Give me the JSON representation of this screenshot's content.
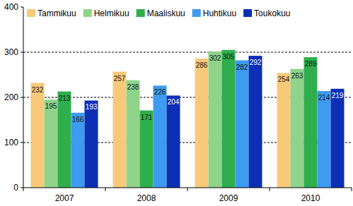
{
  "chart_data": {
    "type": "bar",
    "categories": [
      "2007",
      "2008",
      "2009",
      "2010"
    ],
    "series": [
      {
        "name": "Tammikuu",
        "color": "#f9c97a",
        "values": [
          232,
          257,
          286,
          254
        ]
      },
      {
        "name": "Helmikuu",
        "color": "#8fd48a",
        "values": [
          195,
          238,
          302,
          263
        ]
      },
      {
        "name": "Maaliskuu",
        "color": "#2fae4e",
        "values": [
          213,
          171,
          305,
          289
        ]
      },
      {
        "name": "Huhtikuu",
        "color": "#3d9bf2",
        "values": [
          166,
          226,
          282,
          214
        ]
      },
      {
        "name": "Toukokuu",
        "color": "#0b2fb5",
        "values": [
          193,
          204,
          292,
          219
        ]
      }
    ],
    "ylim": [
      0,
      400
    ],
    "yticks": [
      0,
      100,
      200,
      300,
      400
    ],
    "grid": true,
    "legend": "upper left",
    "data_labels": true
  }
}
